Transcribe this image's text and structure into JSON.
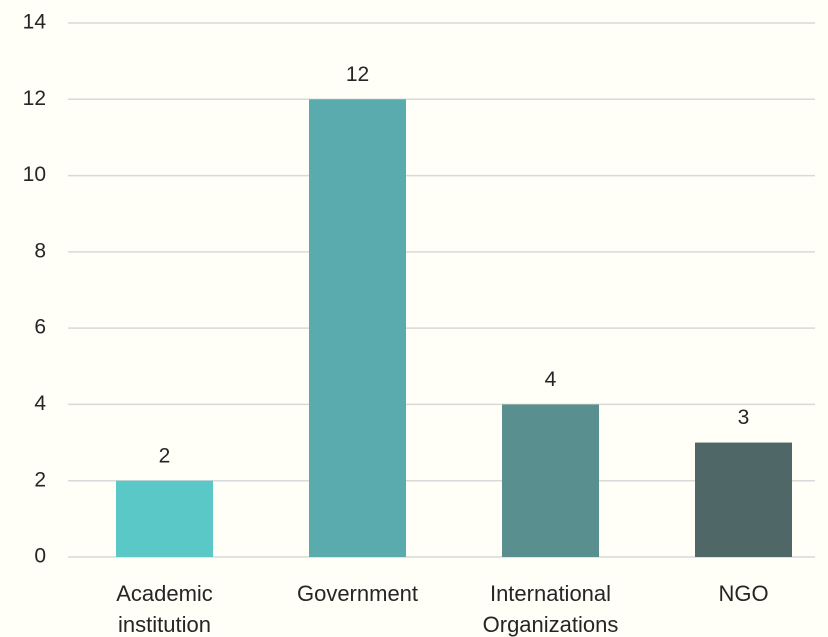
{
  "chart_data": {
    "type": "bar",
    "categories": [
      "Academic institution",
      "Government",
      "International Organizations",
      "NGO"
    ],
    "values": [
      2,
      12,
      4,
      3
    ],
    "colors": [
      "#5bc8c8",
      "#5aabae",
      "#5a8f8f",
      "#4f6767"
    ],
    "ylim": [
      0,
      14
    ],
    "yticks": [
      0,
      2,
      4,
      6,
      8,
      10,
      12,
      14
    ],
    "grid": true
  }
}
